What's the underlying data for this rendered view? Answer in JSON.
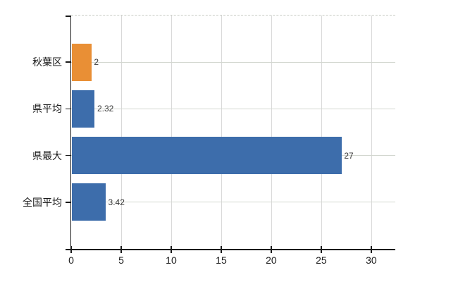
{
  "chart_data": {
    "type": "bar",
    "orientation": "horizontal",
    "title": "",
    "xlabel": "",
    "ylabel": "",
    "categories": [
      "秋葉区",
      "県平均",
      "県最大",
      "全国平均"
    ],
    "values": [
      2,
      2.32,
      27,
      3.42
    ],
    "value_labels": [
      "2",
      "2.32",
      "27",
      "3.42"
    ],
    "bar_colors": [
      "#e98f35",
      "#3d6dab",
      "#3d6dab",
      "#3d6dab"
    ],
    "x_ticks": [
      0,
      5,
      10,
      15,
      20,
      25,
      30
    ],
    "x_tick_labels": [
      "0",
      "5",
      "10",
      "15",
      "20",
      "25",
      "30"
    ],
    "xlim": [
      0,
      32.4
    ],
    "grid": true,
    "legend": false,
    "colors": {
      "accent_orange": "#e98f35",
      "accent_blue": "#3d6dab",
      "grid_vertical": "#d9d9d9",
      "grid_horizontal": "#d3d7cf",
      "axis": "#1a1a1a",
      "background": "#ffffff"
    }
  }
}
